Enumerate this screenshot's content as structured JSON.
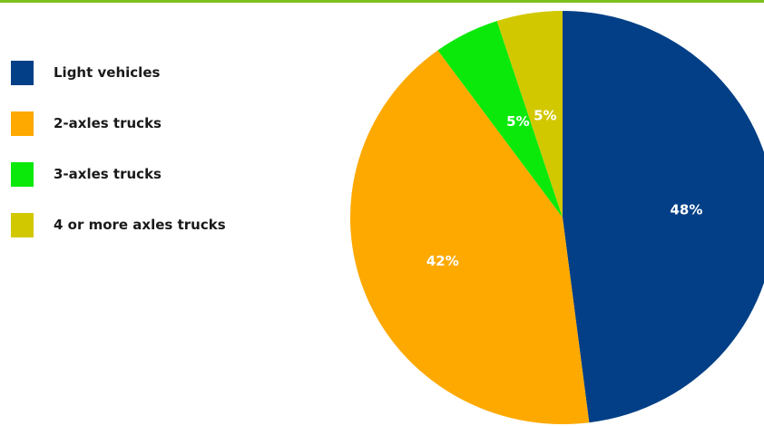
{
  "colors": {
    "top_rule": "#7cc01e"
  },
  "chart_data": {
    "type": "pie",
    "title": "",
    "start_angle_deg": 0,
    "direction": "clockwise",
    "slices": [
      {
        "label": "Light vehicles",
        "value": 48,
        "value_label": "48%",
        "color": "#023f86"
      },
      {
        "label": "2-axles trucks",
        "value": 42,
        "value_label": "42%",
        "color": "#fea900"
      },
      {
        "label": "3-axles trucks",
        "value": 5,
        "value_label": "5%",
        "color": "#0be90b"
      },
      {
        "label": "4 or more axles trucks",
        "value": 5,
        "value_label": "5%",
        "color": "#d2c800"
      }
    ],
    "legend_position": "left"
  }
}
